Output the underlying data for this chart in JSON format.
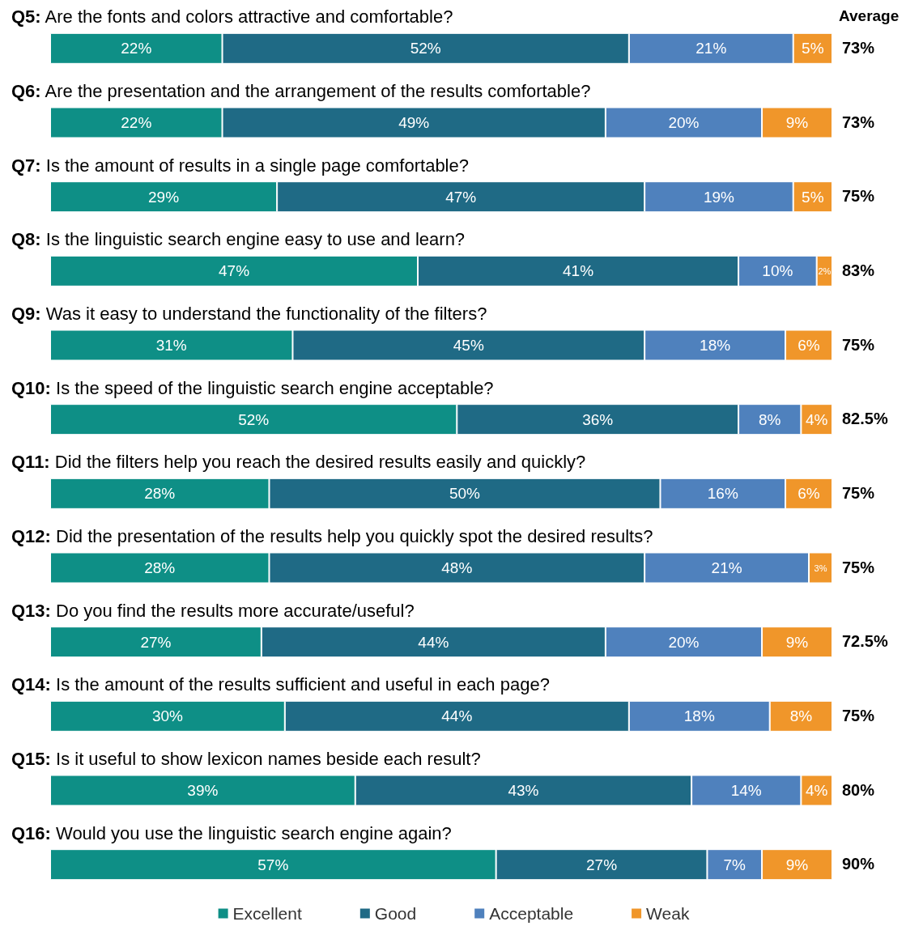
{
  "chart_data": {
    "type": "bar",
    "orientation": "horizontal",
    "stacked": true,
    "categories": [
      "Q5: Are the fonts and colors attractive and comfortable?",
      "Q6: Are the presentation and the arrangement of the results comfortable?",
      "Q7: Is the amount of results in a single page comfortable?",
      "Q8: Is the linguistic search engine easy to use and learn?",
      "Q9: Was it easy to understand the functionality of the filters?",
      "Q10: Is the speed of the linguistic search engine acceptable?",
      "Q11: Did the filters help you reach the desired results easily and quickly?",
      "Q12: Did the presentation of the results help you quickly spot the desired results?",
      "Q13: Do you find the results more accurate/useful?",
      "Q14: Is the amount of the results sufficient and useful in each page?",
      "Q15: Is it useful to show lexicon names beside each result?",
      "Q16: Would you use the linguistic search engine again?"
    ],
    "series": [
      {
        "name": "Excellent",
        "color": "#0e8f86",
        "values": [
          22,
          22,
          29,
          47,
          31,
          52,
          28,
          28,
          27,
          30,
          39,
          57
        ],
        "value_labels": [
          "22%",
          "22%",
          "29%",
          "47%",
          "31%",
          "52%",
          "28%",
          "28%",
          "27%",
          "30%",
          "39%",
          "57%"
        ]
      },
      {
        "name": "Good",
        "color": "#1f6a85",
        "values": [
          52,
          49,
          47,
          41,
          45,
          36,
          50,
          48,
          44,
          44,
          43,
          27
        ],
        "value_labels": [
          "52%",
          "49%",
          "47%",
          "41%",
          "45%",
          "36%",
          "50%",
          "48%",
          "44%",
          "44%",
          "43%",
          "27%"
        ]
      },
      {
        "name": "Acceptable",
        "color": "#4f81bd",
        "values": [
          21,
          20,
          19,
          10,
          18,
          8,
          16,
          21,
          20,
          18,
          14,
          7
        ],
        "value_labels": [
          "21%",
          "20%",
          "19%",
          "10%",
          "18%",
          "8%",
          "16%",
          "21%",
          "20%",
          "18%",
          "14%",
          "7%"
        ]
      },
      {
        "name": "Weak",
        "color": "#f0962a",
        "values": [
          5,
          9,
          5,
          2,
          6,
          4,
          6,
          3,
          9,
          8,
          4,
          9
        ],
        "value_labels": [
          "5%",
          "9%",
          "5%",
          "2%",
          "6%",
          "4%",
          "6%",
          "3%",
          "9%",
          "8%",
          "4%",
          "9%"
        ]
      }
    ],
    "xlim": [
      0,
      100
    ],
    "legend": "bottom",
    "annotations": [
      "Average",
      "73%",
      "73%",
      "75%",
      "83%",
      "75%",
      "82.5%",
      "75%",
      "75%",
      "72.5%",
      "75%",
      "80%",
      "90%"
    ]
  }
}
